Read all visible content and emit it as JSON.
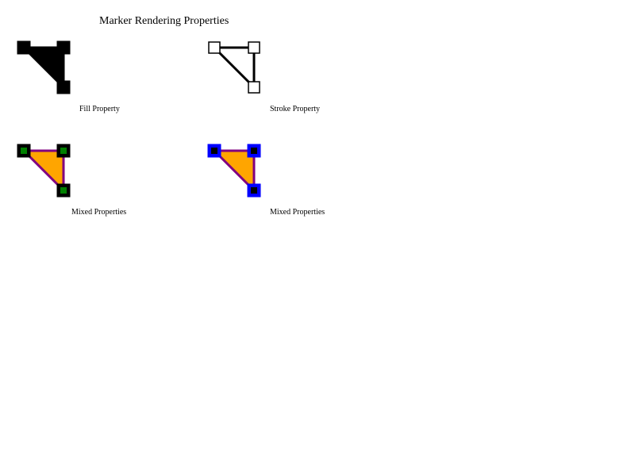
{
  "title": "Marker Rendering Properties",
  "panels": [
    {
      "caption": "Fill Property",
      "fill": "#000000",
      "stroke": "#000000",
      "marker_fill": "#000000",
      "marker_stroke": "#000000",
      "marker_inner": null
    },
    {
      "caption": "Stroke Property",
      "fill": "none",
      "stroke": "#000000",
      "marker_fill": "#ffffff",
      "marker_stroke": "#000000",
      "marker_inner": null
    },
    {
      "caption": "Mixed Properties",
      "fill": "#ffa500",
      "stroke": "#800080",
      "marker_fill": "#000000",
      "marker_stroke": "#000000",
      "marker_inner": "#008000"
    },
    {
      "caption": "Mixed Properties",
      "fill": "#ffa500",
      "stroke": "#800080",
      "marker_fill": "#0000ff",
      "marker_stroke": "#0000ff",
      "marker_inner": "#000000"
    }
  ]
}
